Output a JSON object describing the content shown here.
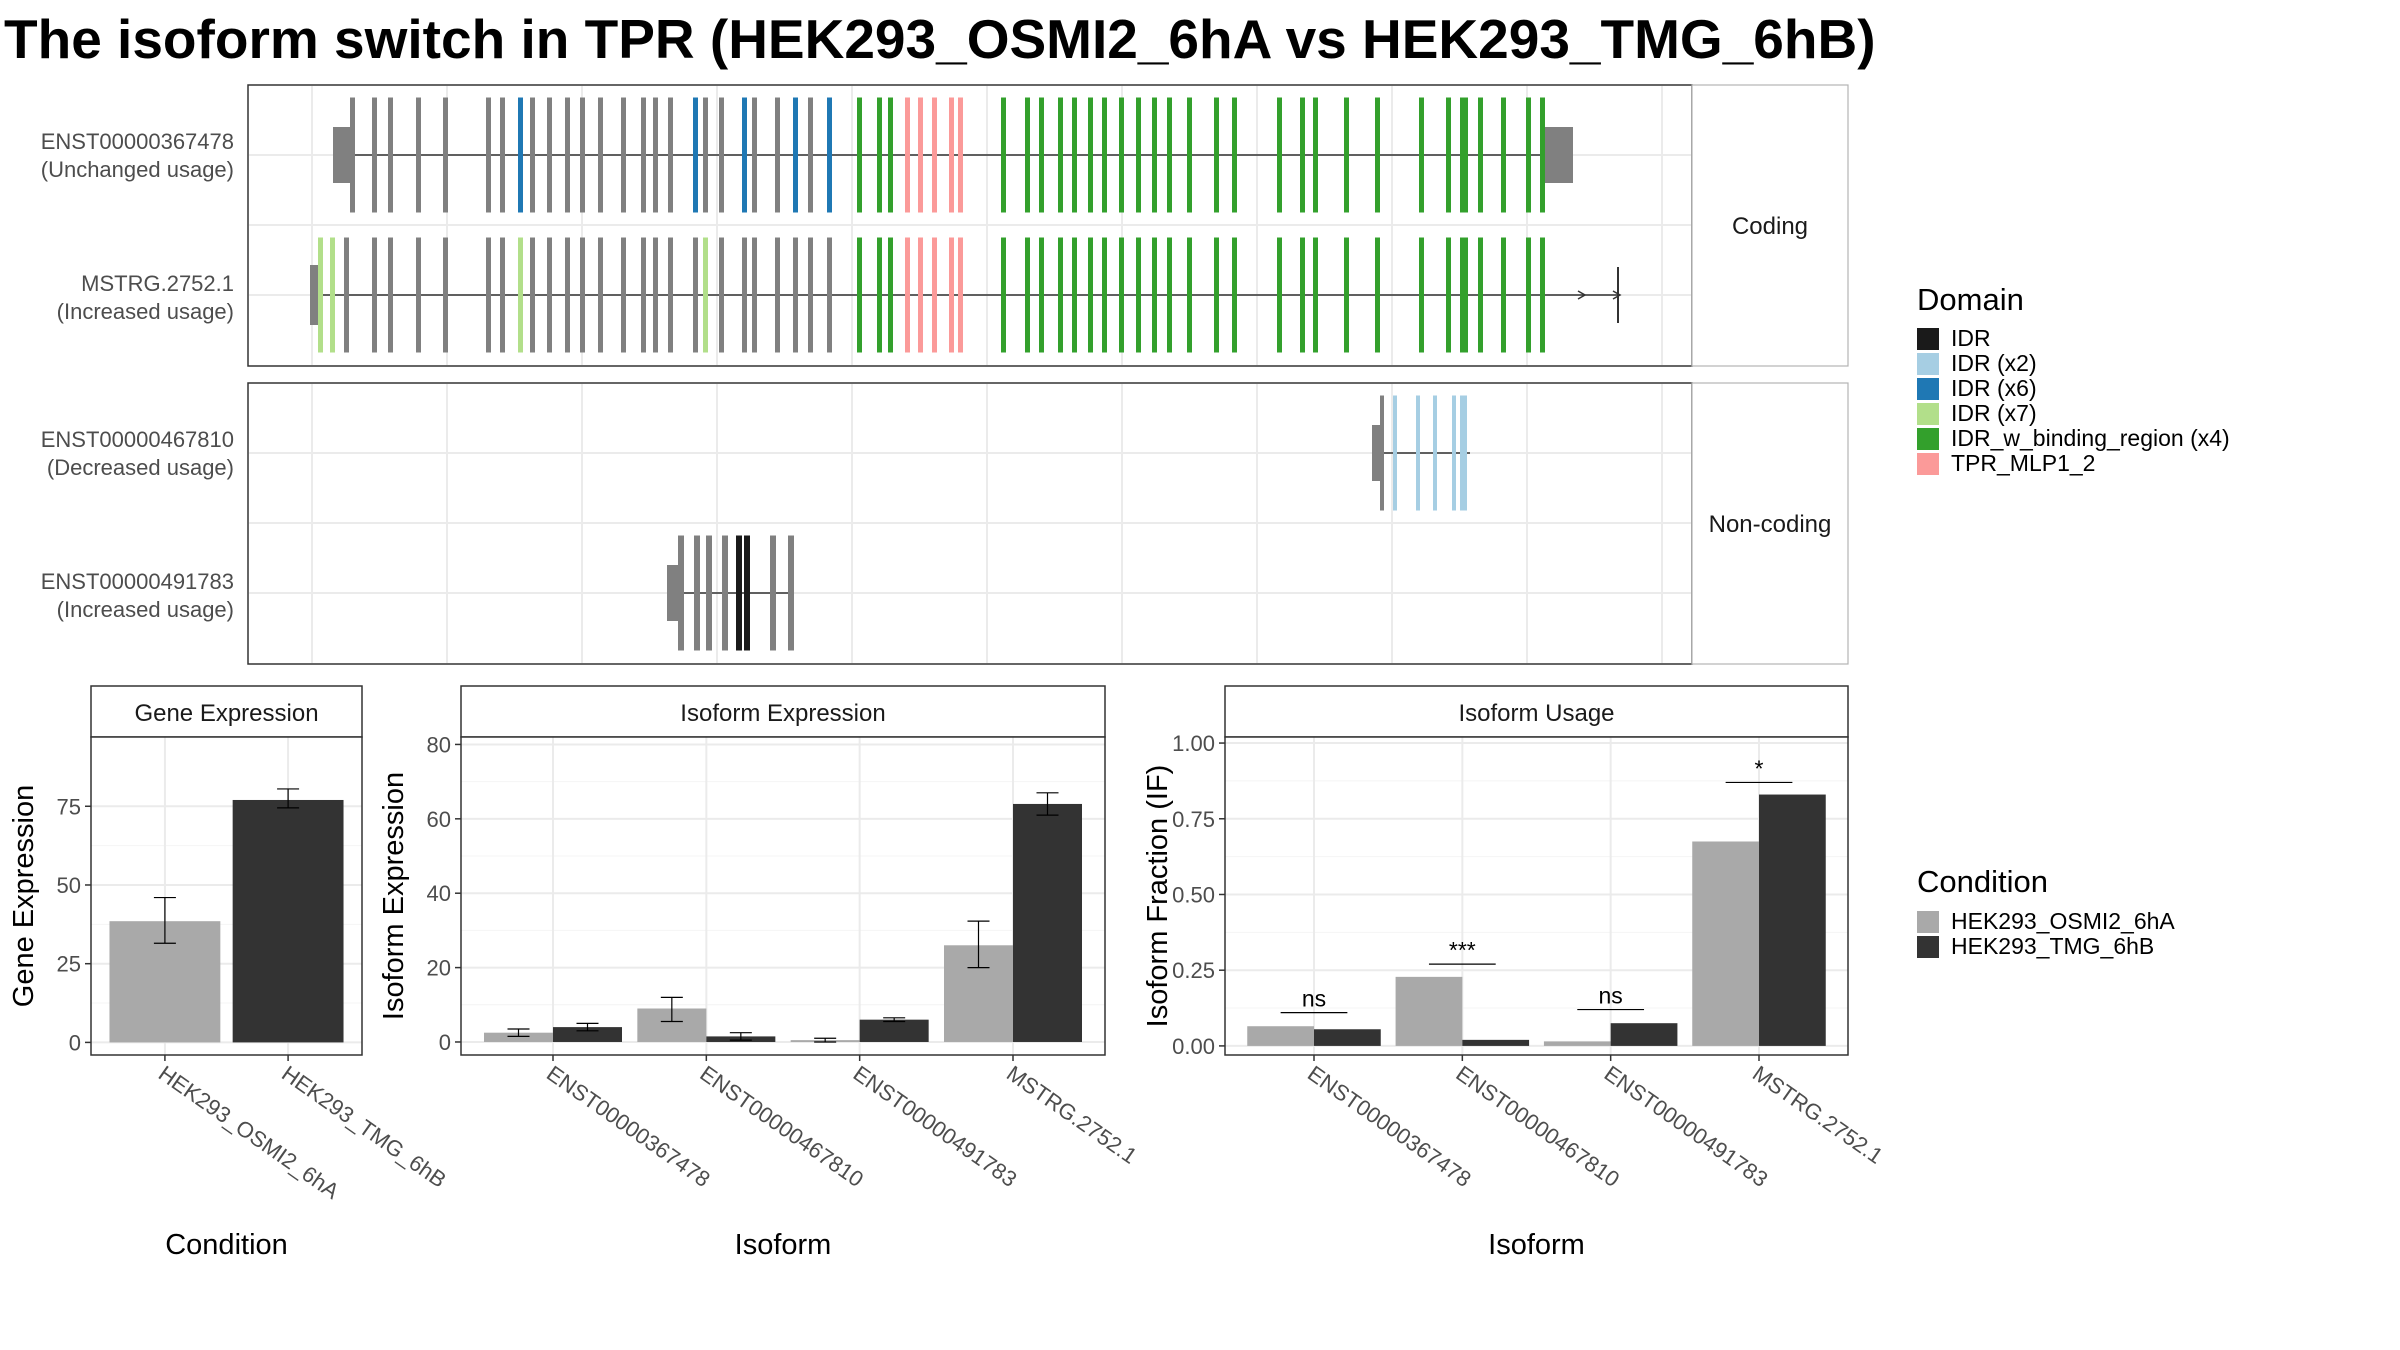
{
  "title": "The isoform switch in TPR (HEK293_OSMI2_6hA vs HEK293_TMG_6hB)",
  "colors": {
    "cond_a": "#a9a9a9",
    "cond_b": "#333333",
    "exon_default": "#808080",
    "grid": "#ebebeb",
    "panel_border": "#333333",
    "strip_bg": "#ffffff"
  },
  "transcript_panel": {
    "coding_label": "Coding",
    "noncoding_label": "Non-coding",
    "transcripts": [
      {
        "id": "ENST00000367478",
        "usage": "(Unchanged usage)",
        "group": "coding"
      },
      {
        "id": "MSTRG.2752.1",
        "usage": "(Increased usage)",
        "group": "coding"
      },
      {
        "id": "ENST00000467810",
        "usage": "(Decreased usage)",
        "group": "noncoding"
      },
      {
        "id": "ENST00000491783",
        "usage": "(Increased usage)",
        "group": "noncoding"
      }
    ]
  },
  "domain_legend": {
    "title": "Domain",
    "items": [
      {
        "label": "IDR",
        "color": "#1a1a1a"
      },
      {
        "label": "IDR (x2)",
        "color": "#a6cee3"
      },
      {
        "label": "IDR (x6)",
        "color": "#1f78b4"
      },
      {
        "label": "IDR (x7)",
        "color": "#b2df8a"
      },
      {
        "label": "IDR_w_binding_region (x4)",
        "color": "#33a02c"
      },
      {
        "label": "TPR_MLP1_2",
        "color": "#fb9a99"
      }
    ]
  },
  "condition_legend": {
    "title": "Condition",
    "items": [
      {
        "label": "HEK293_OSMI2_6hA",
        "color": "#a9a9a9"
      },
      {
        "label": "HEK293_TMG_6hB",
        "color": "#333333"
      }
    ]
  },
  "chart_data": [
    {
      "type": "bar",
      "title": "Gene Expression",
      "xlabel": "Condition",
      "ylabel": "Gene Expression",
      "categories": [
        "HEK293_OSMI2_6hA",
        "HEK293_TMG_6hB"
      ],
      "values": [
        38.5,
        77
      ],
      "errors": [
        [
          31.5,
          46
        ],
        [
          74.5,
          80.5
        ]
      ],
      "ylim": [
        -4,
        97
      ],
      "yticks": [
        0,
        25,
        50,
        75
      ],
      "grid": true
    },
    {
      "type": "bar",
      "title": "Isoform Expression",
      "xlabel": "Isoform",
      "ylabel": "Isoform Expression",
      "categories": [
        "ENST00000367478",
        "ENST00000467810",
        "ENST00000491783",
        "MSTRG.2752.1"
      ],
      "series": [
        {
          "name": "HEK293_OSMI2_6hA",
          "values": [
            2.5,
            9,
            0.5,
            26
          ],
          "errors": [
            [
              1.5,
              3.5
            ],
            [
              5.5,
              12
            ],
            [
              0,
              1
            ],
            [
              20,
              32.5
            ]
          ]
        },
        {
          "name": "HEK293_TMG_6hB",
          "values": [
            4,
            1.5,
            6,
            64
          ],
          "errors": [
            [
              3,
              5
            ],
            [
              0.5,
              2.5
            ],
            [
              5.5,
              6.5
            ],
            [
              61,
              67
            ]
          ]
        }
      ],
      "ylim": [
        -3.5,
        82
      ],
      "yticks": [
        0,
        20,
        40,
        60,
        80
      ],
      "grid": true
    },
    {
      "type": "bar",
      "title": "Isoform Usage",
      "xlabel": "Isoform",
      "ylabel": "Isoform Fraction (IF)",
      "categories": [
        "ENST00000367478",
        "ENST00000467810",
        "ENST00000491783",
        "MSTRG.2752.1"
      ],
      "series": [
        {
          "name": "HEK293_OSMI2_6hA",
          "values": [
            0.065,
            0.228,
            0.015,
            0.675
          ]
        },
        {
          "name": "HEK293_TMG_6hB",
          "values": [
            0.055,
            0.02,
            0.075,
            0.83
          ]
        }
      ],
      "significance": [
        "ns",
        "***",
        "ns",
        "*"
      ],
      "significance_y": [
        0.11,
        0.27,
        0.12,
        0.87
      ],
      "ylim": [
        -0.03,
        1.02
      ],
      "yticks": [
        "0.00",
        "0.25",
        "0.50",
        "0.75",
        "1.00"
      ],
      "grid": true
    }
  ]
}
